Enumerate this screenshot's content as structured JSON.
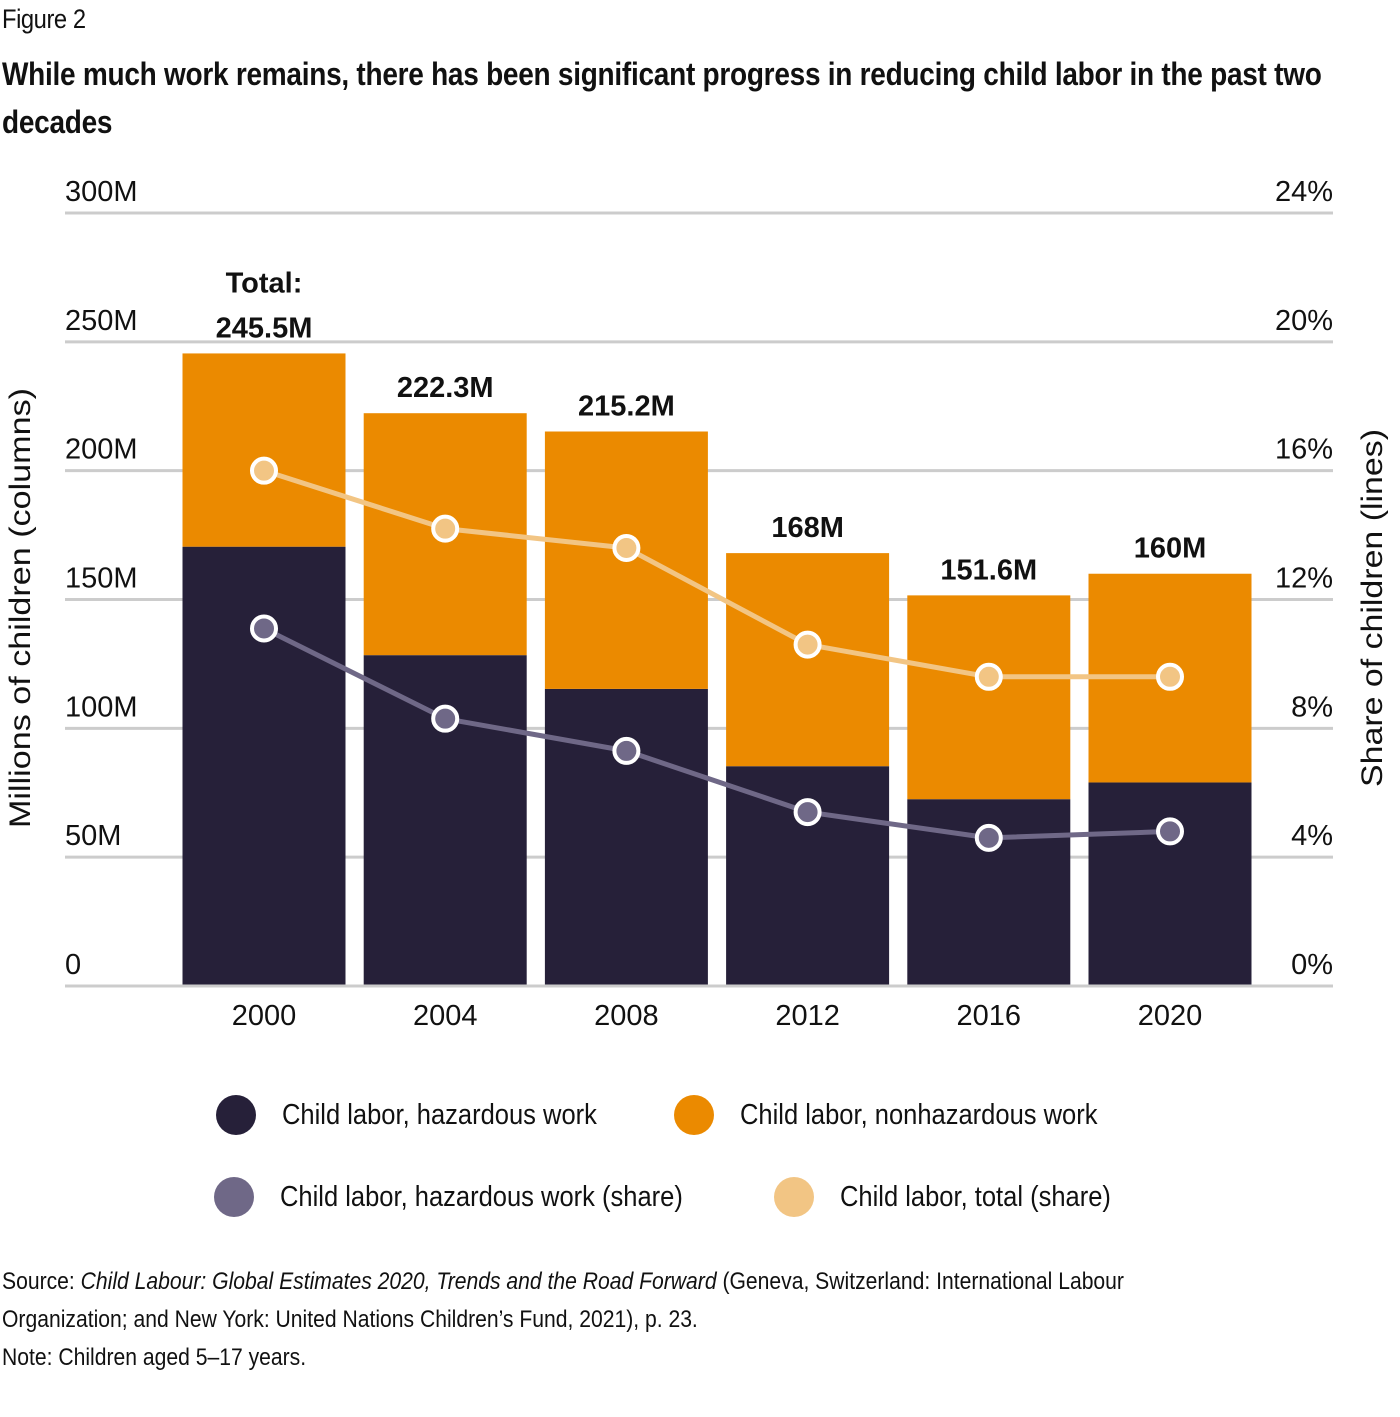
{
  "figure_label": "Figure 2",
  "title": "While much work remains, there has been significant progress in reducing child labor in the past two decades",
  "colors": {
    "hazardous": "#262039",
    "nonhazardous": "#EB8A00",
    "hazardous_share": "#6F6887",
    "total_share": "#F2C584",
    "gridline": "#CCCCCC"
  },
  "chart_data": {
    "type": "bar",
    "subtype": "stacked bar with line overlay (dual axis)",
    "title": "While much work remains, there has been significant progress in reducing child labor in the past two decades",
    "categories": [
      "2000",
      "2004",
      "2008",
      "2012",
      "2016",
      "2020"
    ],
    "ylabel": "Millions of children (columns)",
    "y2label": "Share of children (lines)",
    "ylim": [
      0,
      300
    ],
    "y2lim": [
      0,
      24
    ],
    "yticks": [
      "0",
      "50M",
      "100M",
      "150M",
      "200M",
      "250M",
      "300M"
    ],
    "yticks_values": [
      0,
      50,
      100,
      150,
      200,
      250,
      300
    ],
    "y2ticks": [
      "0%",
      "4%",
      "8%",
      "12%",
      "16%",
      "20%",
      "24%"
    ],
    "y2ticks_values": [
      0,
      4,
      8,
      12,
      16,
      20,
      24
    ],
    "grid": true,
    "series": [
      {
        "name": "Child labor, hazardous work",
        "type": "bar",
        "axis": "left",
        "unit": "millions",
        "values": [
          170.5,
          128.4,
          115.3,
          85.3,
          72.5,
          79.0
        ]
      },
      {
        "name": "Child labor, nonhazardous work",
        "type": "bar",
        "axis": "left",
        "unit": "millions",
        "values": [
          75.0,
          93.9,
          99.9,
          82.7,
          79.1,
          81.0
        ]
      },
      {
        "name": "Child labor, hazardous work (share)",
        "type": "line",
        "axis": "right",
        "unit": "percent",
        "values": [
          11.1,
          8.3,
          7.3,
          5.4,
          4.6,
          4.8
        ]
      },
      {
        "name": "Child labor, total (share)",
        "type": "line",
        "axis": "right",
        "unit": "percent",
        "values": [
          16.0,
          14.2,
          13.6,
          10.6,
          9.6,
          9.6
        ]
      }
    ],
    "totals": [
      245.5,
      222.3,
      215.2,
      168,
      151.6,
      160
    ],
    "total_labels": [
      "245.5M",
      "222.3M",
      "215.2M",
      "168M",
      "151.6M",
      "160M"
    ],
    "total_prefix": "Total:",
    "legend_position": "bottom"
  },
  "legend": [
    {
      "label": "Child labor, hazardous work"
    },
    {
      "label": "Child labor, nonhazardous work"
    },
    {
      "label": "Child labor, hazardous work (share)"
    },
    {
      "label": "Child labor, total (share)"
    }
  ],
  "footer": {
    "source_prefix": "Source: ",
    "source_title": "Child Labour: Global Estimates 2020, Trends and the Road Forward",
    "source_rest_line1": " (Geneva, Switzerland: International Labour",
    "source_line2": "Organization; and New York: United Nations Children’s Fund, 2021), p. 23.",
    "note": "Note: Children aged 5–17 years."
  }
}
